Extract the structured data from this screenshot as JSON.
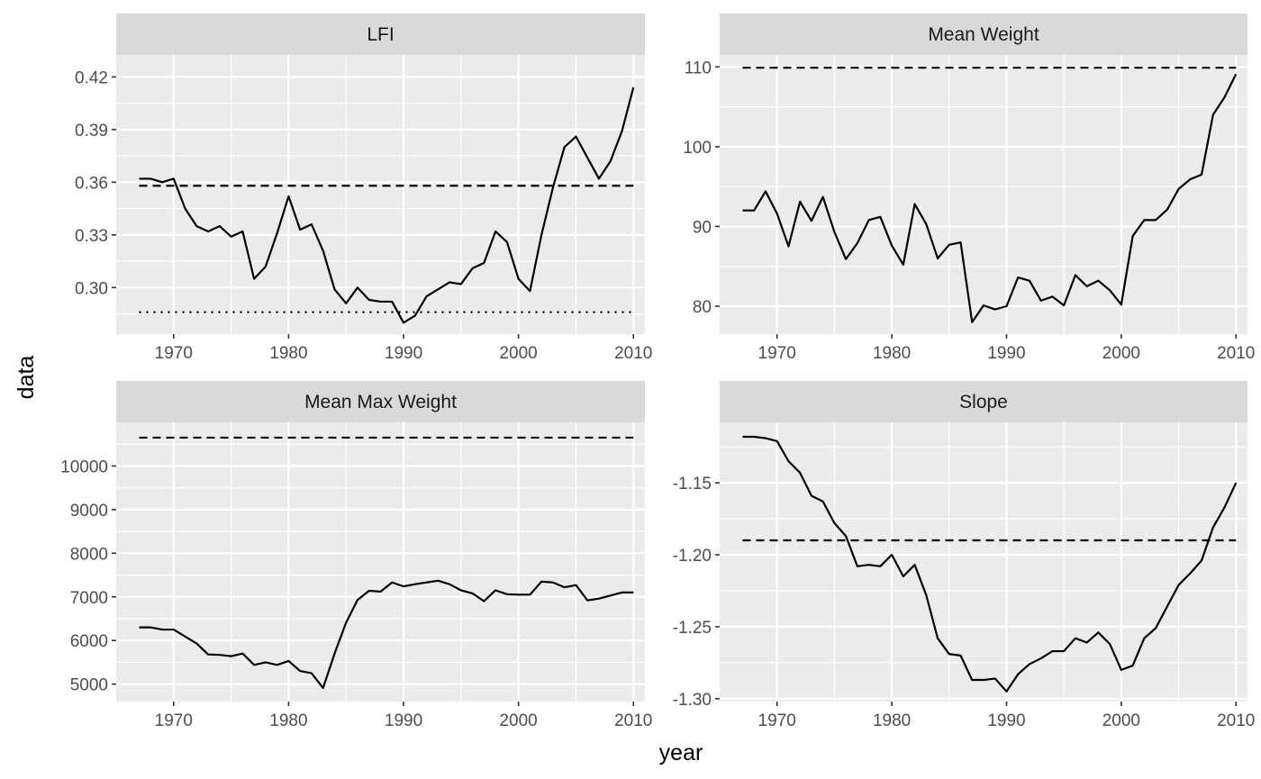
{
  "chart_data": {
    "type": "line",
    "layout": "facet-2x2",
    "xlabel": "year",
    "ylabel": "data",
    "years": [
      1967,
      1968,
      1969,
      1970,
      1971,
      1972,
      1973,
      1974,
      1975,
      1976,
      1977,
      1978,
      1979,
      1980,
      1981,
      1982,
      1983,
      1984,
      1985,
      1986,
      1987,
      1988,
      1989,
      1990,
      1991,
      1992,
      1993,
      1994,
      1995,
      1996,
      1997,
      1998,
      1999,
      2000,
      2001,
      2002,
      2003,
      2004,
      2005,
      2006,
      2007,
      2008,
      2009,
      2010
    ],
    "xlim": [
      1965,
      2011
    ],
    "xticks": [
      1970,
      1980,
      1990,
      2000,
      2010
    ],
    "grid": true,
    "panels": [
      {
        "title": "LFI",
        "ylim": [
          0.2735,
          0.4325
        ],
        "yticks": [
          0.3,
          0.33,
          0.36,
          0.39,
          0.42
        ],
        "ytick_labels": [
          "0.30",
          "0.33",
          "0.36",
          "0.39",
          "0.42"
        ],
        "values": [
          0.362,
          0.362,
          0.36,
          0.362,
          0.345,
          0.335,
          0.332,
          0.335,
          0.329,
          0.332,
          0.305,
          0.312,
          0.331,
          0.352,
          0.333,
          0.336,
          0.321,
          0.299,
          0.291,
          0.3,
          0.293,
          0.292,
          0.292,
          0.28,
          0.284,
          0.295,
          0.299,
          0.303,
          0.302,
          0.311,
          0.314,
          0.332,
          0.326,
          0.305,
          0.298,
          0.33,
          0.357,
          0.38,
          0.386,
          0.374,
          0.362,
          0.372,
          0.389,
          0.414
        ],
        "reference_lines": [
          {
            "style": "dashed",
            "value": 0.358
          },
          {
            "style": "dotted",
            "value": 0.286
          }
        ]
      },
      {
        "title": "Mean Weight",
        "ylim": [
          76.5,
          111.5
        ],
        "yticks": [
          80,
          90,
          100,
          110
        ],
        "ytick_labels": [
          "80",
          "90",
          "100",
          "110"
        ],
        "values": [
          92.0,
          92.0,
          94.4,
          91.6,
          87.5,
          93.1,
          90.7,
          93.7,
          89.3,
          85.9,
          87.9,
          90.8,
          91.2,
          87.6,
          85.2,
          92.8,
          90.3,
          86.0,
          87.7,
          88.0,
          78.0,
          80.1,
          79.6,
          80.0,
          83.6,
          83.2,
          80.7,
          81.2,
          80.1,
          83.9,
          82.5,
          83.2,
          82.0,
          80.2,
          88.8,
          90.8,
          90.8,
          92.1,
          94.7,
          95.9,
          96.5,
          104.0,
          106.2,
          109.1
        ],
        "reference_lines": [
          {
            "style": "dashed",
            "value": 109.9
          }
        ]
      },
      {
        "title": "Mean Max Weight",
        "ylim": [
          4600,
          11000
        ],
        "yticks": [
          5000,
          6000,
          7000,
          8000,
          9000,
          10000
        ],
        "ytick_labels": [
          "5000",
          "6000",
          "7000",
          "8000",
          "9000",
          "10000"
        ],
        "values": [
          6300,
          6300,
          6250,
          6250,
          6090,
          5930,
          5680,
          5670,
          5640,
          5700,
          5440,
          5500,
          5440,
          5530,
          5300,
          5250,
          4910,
          5700,
          6410,
          6930,
          7140,
          7120,
          7330,
          7240,
          7290,
          7330,
          7370,
          7290,
          7150,
          7080,
          6900,
          7150,
          7060,
          7050,
          7050,
          7350,
          7330,
          7220,
          7270,
          6920,
          6960,
          7030,
          7100,
          7100
        ],
        "reference_lines": [
          {
            "style": "dashed",
            "value": 10650
          }
        ]
      },
      {
        "title": "Slope",
        "ylim": [
          -1.302,
          -1.108
        ],
        "yticks": [
          -1.3,
          -1.25,
          -1.2,
          -1.15
        ],
        "ytick_labels": [
          "-1.30",
          "-1.25",
          "-1.20",
          "-1.15"
        ],
        "values": [
          -1.118,
          -1.118,
          -1.119,
          -1.121,
          -1.135,
          -1.143,
          -1.159,
          -1.163,
          -1.178,
          -1.187,
          -1.208,
          -1.207,
          -1.208,
          -1.2,
          -1.215,
          -1.207,
          -1.228,
          -1.258,
          -1.269,
          -1.27,
          -1.287,
          -1.287,
          -1.286,
          -1.295,
          -1.283,
          -1.276,
          -1.272,
          -1.267,
          -1.267,
          -1.258,
          -1.261,
          -1.254,
          -1.262,
          -1.28,
          -1.277,
          -1.258,
          -1.251,
          -1.236,
          -1.221,
          -1.213,
          -1.204,
          -1.181,
          -1.167,
          -1.15
        ],
        "reference_lines": [
          {
            "style": "dashed",
            "value": -1.19
          }
        ]
      }
    ]
  }
}
